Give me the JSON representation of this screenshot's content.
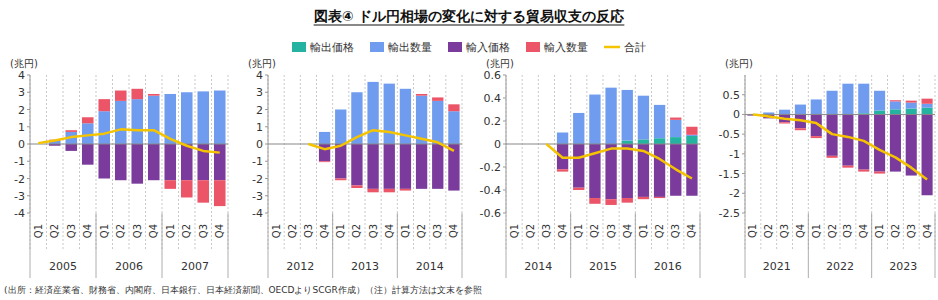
{
  "chart_data": [
    {
      "type": "bar",
      "stacked": true,
      "grid": true,
      "legend": "top",
      "title": "図表④ ドル円相場の変化に対する貿易収支の反応",
      "note": "(出所：経済産業省、財務省、内閣府、日本銀行、日本経済新聞、OECDよりSCGR作成）（注）計算方法は文末を参照",
      "y_label": "(兆円)",
      "categories": [
        "Q1",
        "Q2",
        "Q3",
        "Q4",
        "Q1",
        "Q2",
        "Q3",
        "Q4",
        "Q1",
        "Q2",
        "Q3",
        "Q4"
      ],
      "year_labels": [
        "2005",
        "2006",
        "2007"
      ],
      "ylim": [
        -4,
        4
      ],
      "yticks": [
        -4,
        -3,
        -2,
        -1,
        0,
        1,
        2,
        3,
        4
      ],
      "series": [
        {
          "name": "輸出価格",
          "color": "#23b3a0",
          "values": [
            0,
            0,
            0,
            0,
            0,
            0,
            0,
            0,
            0,
            0,
            0,
            0
          ]
        },
        {
          "name": "輸出数量",
          "color": "#6f9cee",
          "values": [
            0,
            0.2,
            0.7,
            1.2,
            1.9,
            2.5,
            2.6,
            2.8,
            2.9,
            3.0,
            3.05,
            3.1
          ]
        },
        {
          "name": "輸入価格",
          "color": "#7a3b9c",
          "values": [
            0,
            -0.1,
            -0.4,
            -1.2,
            -2.0,
            -2.1,
            -2.3,
            -2.1,
            -2.1,
            -2.1,
            -2.1,
            -2.1
          ]
        },
        {
          "name": "輸入数量",
          "color": "#ec5468",
          "values": [
            0,
            0.05,
            0.1,
            0.35,
            0.7,
            0.6,
            0.6,
            0.1,
            -0.5,
            -1.0,
            -1.3,
            -1.5
          ]
        },
        {
          "name": "合計",
          "type": "line",
          "color": "#f5c400",
          "values": [
            0.05,
            0.2,
            0.4,
            0.5,
            0.6,
            0.85,
            0.8,
            0.8,
            0.3,
            -0.1,
            -0.4,
            -0.5
          ]
        }
      ]
    },
    {
      "type": "bar",
      "stacked": true,
      "grid": true,
      "y_label": "(兆円)",
      "categories": [
        "Q1",
        "Q2",
        "Q3",
        "Q4",
        "Q1",
        "Q2",
        "Q3",
        "Q4",
        "Q1",
        "Q2",
        "Q3",
        "Q4"
      ],
      "year_labels": [
        "2012",
        "2013",
        "2014"
      ],
      "ylim": [
        -4,
        4
      ],
      "yticks": [
        -4,
        -3,
        -2,
        -1,
        0,
        1,
        2,
        3,
        4
      ],
      "series": [
        {
          "name": "輸出価格",
          "color": "#23b3a0",
          "values": [
            0,
            0,
            0,
            0,
            0,
            0,
            0,
            0,
            0,
            0,
            0,
            0
          ]
        },
        {
          "name": "輸出数量",
          "color": "#6f9cee",
          "values": [
            0,
            0,
            0,
            0.7,
            2.0,
            3.0,
            3.6,
            3.5,
            3.2,
            2.8,
            2.5,
            1.9
          ]
        },
        {
          "name": "輸入価格",
          "color": "#7a3b9c",
          "values": [
            0,
            0,
            0,
            -1.0,
            -2.0,
            -2.4,
            -2.6,
            -2.6,
            -2.6,
            -2.6,
            -2.6,
            -2.7
          ]
        },
        {
          "name": "輸入数量",
          "color": "#ec5468",
          "values": [
            0,
            0,
            0,
            -0.05,
            -0.1,
            -0.15,
            -0.2,
            -0.2,
            -0.1,
            0.1,
            0.2,
            0.4
          ]
        },
        {
          "name": "合計",
          "type": "line",
          "color": "#f5c400",
          "values": [
            null,
            null,
            0,
            -0.3,
            -0.1,
            0.4,
            0.8,
            0.7,
            0.5,
            0.3,
            0.1,
            -0.4
          ]
        }
      ]
    },
    {
      "type": "bar",
      "stacked": true,
      "grid": true,
      "y_label": "(兆円)",
      "categories": [
        "Q1",
        "Q2",
        "Q3",
        "Q4",
        "Q1",
        "Q2",
        "Q3",
        "Q4",
        "Q1",
        "Q2",
        "Q3",
        "Q4"
      ],
      "year_labels": [
        "2014",
        "2015",
        "2016"
      ],
      "ylim": [
        -0.6,
        0.6
      ],
      "yticks": [
        -0.6,
        -0.4,
        -0.2,
        0,
        0.2,
        0.4,
        0.6
      ],
      "series": [
        {
          "name": "輸出価格",
          "color": "#23b3a0",
          "values": [
            0,
            0,
            0,
            0,
            0,
            0,
            0,
            0.03,
            0.04,
            0.05,
            0.06,
            0.07
          ]
        },
        {
          "name": "輸出数量",
          "color": "#6f9cee",
          "values": [
            0,
            0,
            0,
            0.1,
            0.27,
            0.43,
            0.49,
            0.44,
            0.38,
            0.29,
            0.15,
            0.01
          ]
        },
        {
          "name": "輸入価格",
          "color": "#7a3b9c",
          "values": [
            0,
            0,
            0,
            -0.22,
            -0.38,
            -0.47,
            -0.48,
            -0.47,
            -0.46,
            -0.46,
            -0.45,
            -0.45
          ]
        },
        {
          "name": "輸入数量",
          "color": "#ec5468",
          "values": [
            0,
            0,
            0,
            -0.02,
            -0.02,
            -0.05,
            -0.05,
            -0.04,
            -0.02,
            -0.01,
            0.02,
            0.07
          ]
        },
        {
          "name": "合計",
          "type": "line",
          "color": "#f5c400",
          "values": [
            null,
            null,
            0,
            -0.12,
            -0.12,
            -0.08,
            -0.04,
            -0.04,
            -0.06,
            -0.13,
            -0.22,
            -0.3
          ]
        }
      ]
    },
    {
      "type": "bar",
      "stacked": true,
      "grid": true,
      "y_label": "(兆円)",
      "categories": [
        "Q1",
        "Q2",
        "Q3",
        "Q4",
        "Q1",
        "Q2",
        "Q3",
        "Q4",
        "Q1",
        "Q2",
        "Q3",
        "Q4"
      ],
      "year_labels": [
        "2021",
        "2022",
        "2023"
      ],
      "ylim": [
        -2.5,
        1.0
      ],
      "yticks": [
        -2.5,
        -2,
        -1.5,
        -1,
        -0.5,
        0,
        0.5
      ],
      "series": [
        {
          "name": "輸出価格",
          "color": "#23b3a0",
          "values": [
            0,
            0,
            0,
            0,
            0,
            0,
            0,
            0.03,
            0.1,
            0.13,
            0.15,
            0.17
          ]
        },
        {
          "name": "輸出数量",
          "color": "#6f9cee",
          "values": [
            0,
            0.05,
            0.12,
            0.25,
            0.38,
            0.6,
            0.78,
            0.75,
            0.5,
            0.2,
            0.15,
            0.1
          ]
        },
        {
          "name": "輸入価格",
          "color": "#7a3b9c",
          "values": [
            -0.03,
            -0.1,
            -0.2,
            -0.35,
            -0.55,
            -1.05,
            -1.3,
            -1.4,
            -1.45,
            -1.45,
            -1.55,
            -2.05
          ]
        },
        {
          "name": "輸入数量",
          "color": "#ec5468",
          "values": [
            0,
            0,
            -0.03,
            -0.05,
            -0.05,
            -0.05,
            -0.05,
            -0.05,
            -0.05,
            0.03,
            0.05,
            0.13
          ]
        },
        {
          "name": "合計",
          "type": "line",
          "color": "#f5c400",
          "values": [
            0,
            -0.05,
            -0.11,
            -0.15,
            -0.22,
            -0.5,
            -0.57,
            -0.67,
            -0.9,
            -1.09,
            -1.35,
            -1.65
          ]
        }
      ]
    }
  ]
}
